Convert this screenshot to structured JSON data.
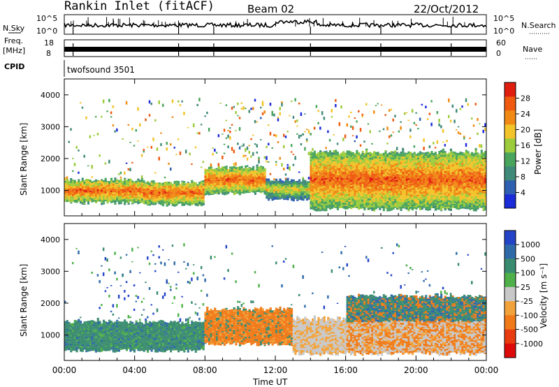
{
  "header": {
    "title": "Rankin Inlet (fitACF)",
    "beam": "Beam 02",
    "date": "22/Oct/2012"
  },
  "nsky_panel": {
    "left_label": "N.Sky",
    "right_label": "N.Search",
    "y_ticks": [
      "10^5",
      "10^0"
    ]
  },
  "freq_panel": {
    "left_label_line1": "Freq.",
    "left_label_line2": "[MHz]",
    "left_ticks": [
      "18",
      "8"
    ],
    "right_label": "Nave",
    "right_ticks": [
      "60",
      "0"
    ]
  },
  "cpid_panel": {
    "label": "CPID",
    "value": "twofsound 3501"
  },
  "colors": {
    "power_scale": [
      "#1a2bd8",
      "#2e5fb0",
      "#3f8a78",
      "#4aa55c",
      "#9ccc3c",
      "#f2c42a",
      "#f08a14",
      "#ef5a10",
      "#e01e10"
    ],
    "velocity_scale": [
      "#2444c8",
      "#2f6aa8",
      "#3a8c70",
      "#4fb04a",
      "#c8c8c8",
      "#f2a23a",
      "#f07a18",
      "#e83c10",
      "#dd0a0a"
    ]
  },
  "chart_data": [
    {
      "type": "heatmap",
      "name": "power",
      "ylabel": "Slant Range [km]",
      "ylim": [
        200,
        4500
      ],
      "y_ticks": [
        1000,
        2000,
        3000,
        4000
      ],
      "x_ticks": [
        "00:00",
        "04:00",
        "08:00",
        "12:00",
        "16:00",
        "20:00",
        "00:00"
      ],
      "colorbar": {
        "label": "Power [dB]",
        "ticks": [
          "4",
          "8",
          "12",
          "16",
          "20",
          "24",
          "28"
        ]
      },
      "bands": [
        {
          "t_start": 0.0,
          "t_end": 4.5,
          "r_low": 600,
          "r_high": 1300,
          "level": "high"
        },
        {
          "t_start": 4.5,
          "t_end": 8.0,
          "r_low": 550,
          "r_high": 1250,
          "level": "high"
        },
        {
          "t_start": 8.0,
          "t_end": 11.5,
          "r_low": 900,
          "r_high": 1700,
          "level": "mid-high"
        },
        {
          "t_start": 11.5,
          "t_end": 14.0,
          "r_low": 700,
          "r_high": 1300,
          "level": "mid"
        },
        {
          "t_start": 14.0,
          "t_end": 24.0,
          "r_low": 400,
          "r_high": 2200,
          "level": "high"
        }
      ]
    },
    {
      "type": "heatmap",
      "name": "velocity",
      "ylabel": "Slant Range [km]",
      "xlabel": "Time UT",
      "ylim": [
        200,
        4500
      ],
      "y_ticks": [
        1000,
        2000,
        3000,
        4000
      ],
      "x_ticks": [
        "00:00",
        "04:00",
        "08:00",
        "12:00",
        "16:00",
        "20:00",
        "00:00"
      ],
      "colorbar": {
        "label": "Velocity [m s⁻¹]",
        "ticks": [
          "1000",
          "500",
          "100",
          "25",
          "-25",
          "-100",
          "-500",
          "-1000"
        ]
      },
      "bands": [
        {
          "t_start": 0.0,
          "t_end": 8.0,
          "r_low": 500,
          "r_high": 1400,
          "level": "100"
        },
        {
          "t_start": 8.0,
          "t_end": 13.0,
          "r_low": 700,
          "r_high": 1800,
          "level": "-100"
        },
        {
          "t_start": 13.0,
          "t_end": 16.0,
          "r_low": 400,
          "r_high": 1500,
          "level": "-25"
        },
        {
          "t_start": 16.0,
          "t_end": 24.0,
          "r_low": 400,
          "r_high": 2200,
          "level": "mixed"
        }
      ]
    }
  ]
}
